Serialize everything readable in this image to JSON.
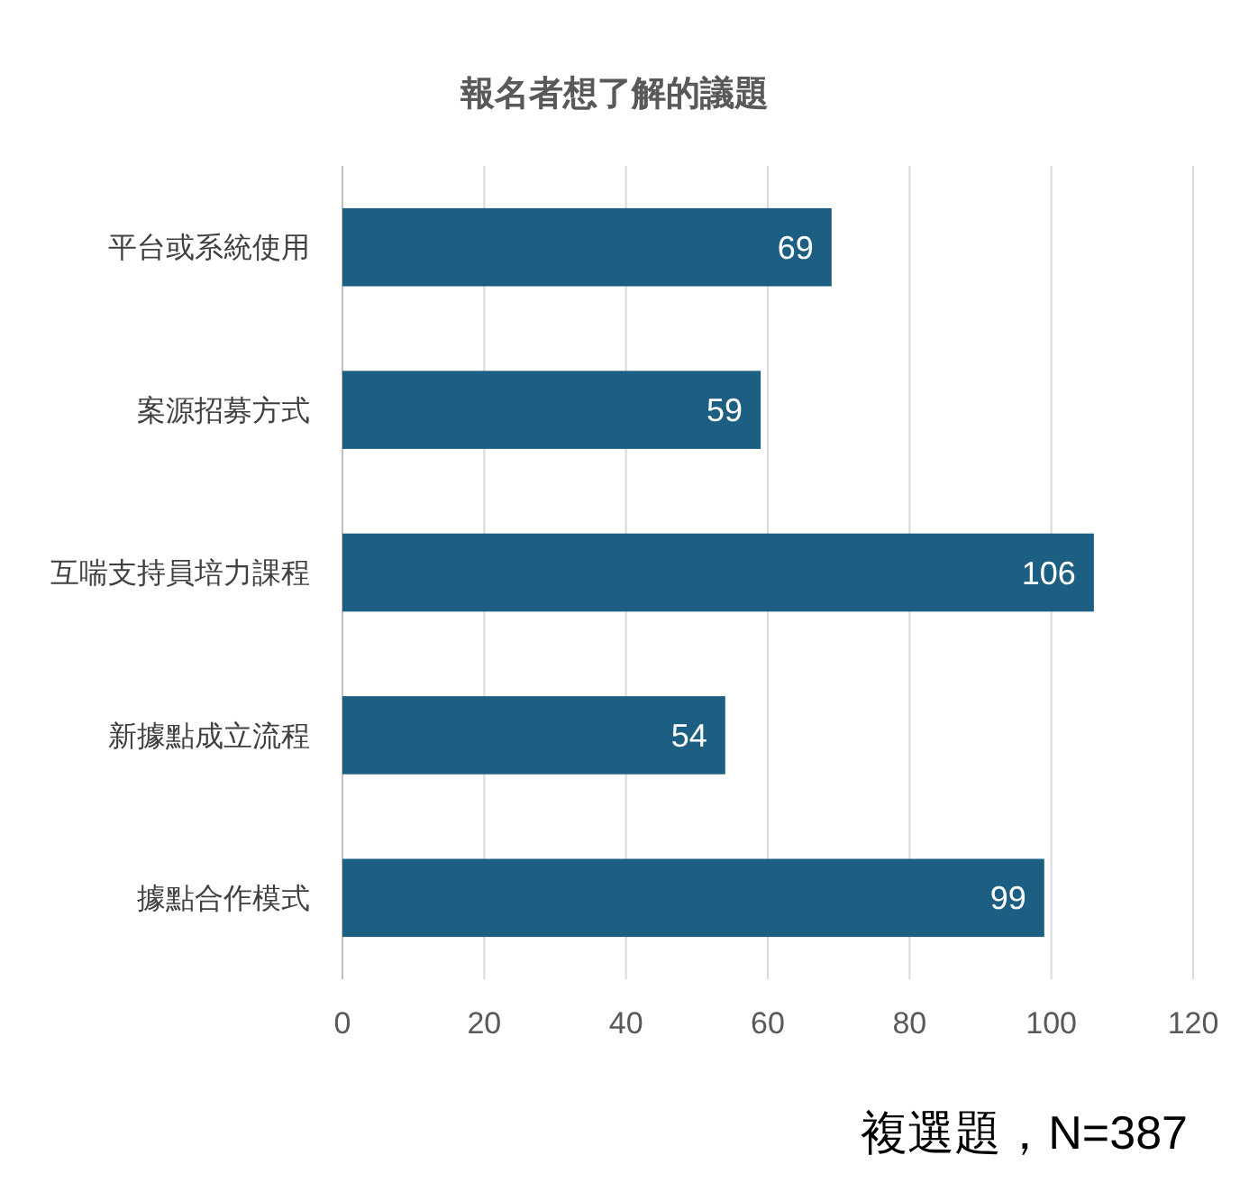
{
  "chart_data": {
    "type": "bar",
    "orientation": "horizontal",
    "title": "報名者想了解的議題",
    "categories": [
      "平台或系統使用",
      "案源招募方式",
      "互喘支持員培力課程",
      "新據點成立流程",
      "據點合作模式"
    ],
    "values": [
      69,
      59,
      106,
      54,
      99
    ],
    "color": "#1d5f82",
    "xlim": [
      0,
      120
    ],
    "xticks": [
      0,
      20,
      40,
      60,
      80,
      100,
      120
    ],
    "grid": "x",
    "data_labels": true,
    "annotations": [
      "複選題，N=387"
    ]
  }
}
